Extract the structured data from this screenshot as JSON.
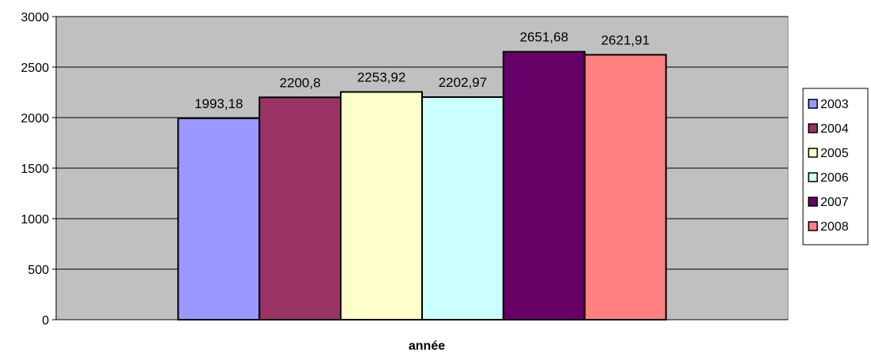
{
  "chart_data": {
    "type": "bar",
    "categories": [
      ""
    ],
    "series": [
      {
        "name": "2003",
        "values": [
          1993.18
        ],
        "label": "1993,18",
        "color": "#9999ff"
      },
      {
        "name": "2004",
        "values": [
          2200.8
        ],
        "label": "2200,8",
        "color": "#993366"
      },
      {
        "name": "2005",
        "values": [
          2253.92
        ],
        "label": "2253,92",
        "color": "#ffffcc"
      },
      {
        "name": "2006",
        "values": [
          2202.97
        ],
        "label": "2202,97",
        "color": "#ccffff"
      },
      {
        "name": "2007",
        "values": [
          2651.68
        ],
        "label": "2651,68",
        "color": "#660066"
      },
      {
        "name": "2008",
        "values": [
          2621.91
        ],
        "label": "2621,91",
        "color": "#ff8080"
      }
    ],
    "title": "",
    "xlabel": "année",
    "ylabel": "",
    "ylim": [
      0,
      3000
    ],
    "yticks": [
      0,
      500,
      1000,
      1500,
      2000,
      2500,
      3000
    ],
    "grid": true,
    "plot_background": "#c0c0c0",
    "legend_position": "right"
  }
}
